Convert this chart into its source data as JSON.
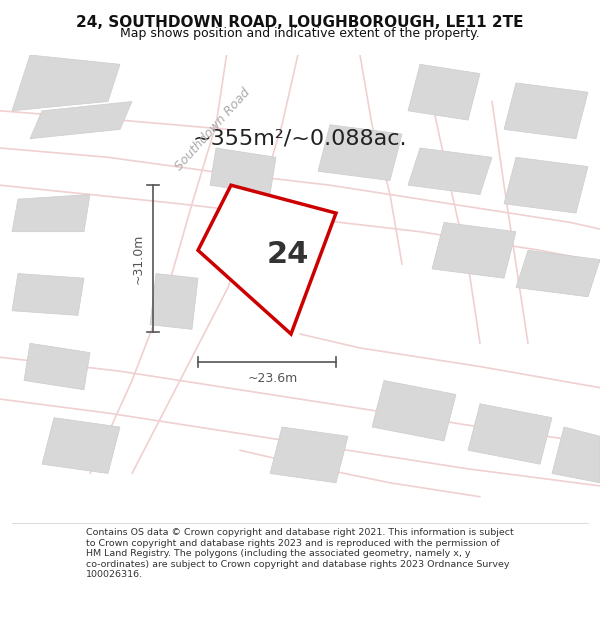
{
  "title_line1": "24, SOUTHDOWN ROAD, LOUGHBOROUGH, LE11 2TE",
  "title_line2": "Map shows position and indicative extent of the property.",
  "area_text": "~355m²/~0.088ac.",
  "number_label": "24",
  "dim_height": "~31.0m",
  "dim_width": "~23.6m",
  "road_label": "Southdown Road",
  "footer_wrapped": "Contains OS data © Crown copyright and database right 2021. This information is subject\nto Crown copyright and database rights 2023 and is reproduced with the permission of\nHM Land Registry. The polygons (including the associated geometry, namely x, y\nco-ordinates) are subject to Crown copyright and database rights 2023 Ordnance Survey\n100026316.",
  "bg_color": "#ffffff",
  "map_bg": "#f5f5f5",
  "plot_fill": "#ffffff",
  "plot_outline": "#cc0000",
  "road_color": "#f0d0d0",
  "building_fill": "#d8d8d8",
  "dim_color": "#555555",
  "title_color": "#111111",
  "road_label_color": "#aaaaaa"
}
